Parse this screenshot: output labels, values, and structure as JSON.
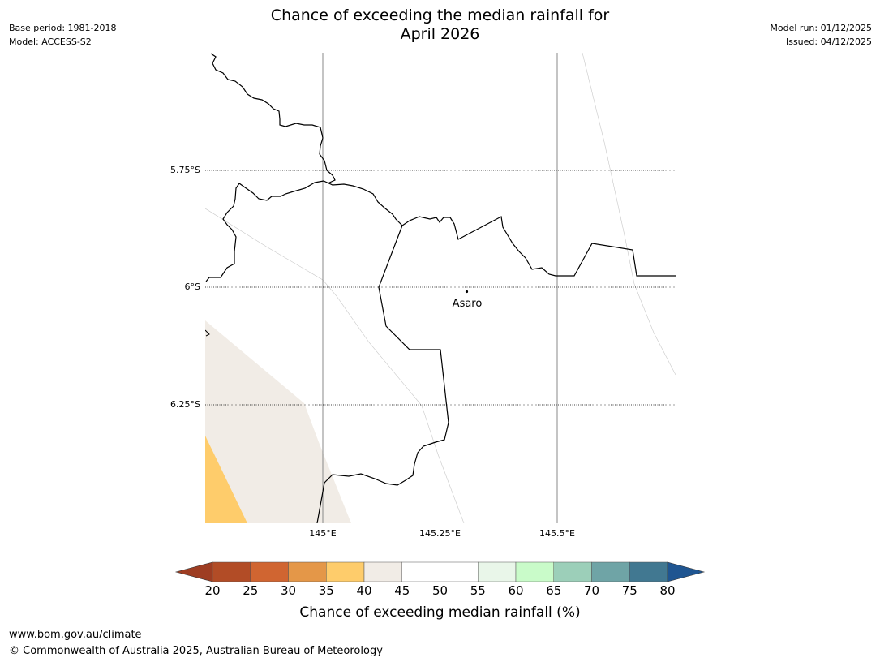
{
  "header": {
    "base_period": "Base period: 1981-2018",
    "model": "Model: ACCESS-S2",
    "title_line1": "Chance of exceeding the median rainfall for",
    "title_line2": "April 2026",
    "model_run": "Model run: 01/12/2025",
    "issued": "Issued: 04/12/2025"
  },
  "map": {
    "lat_labels": [
      "5.75°S",
      "6°S",
      "6.25°S"
    ],
    "lon_labels": [
      "145°E",
      "145.25°E",
      "145.5°E"
    ],
    "place": "Asaro",
    "extent": {
      "lon_min": 144.75,
      "lon_max": 145.75,
      "lat_top": -5.5,
      "lat_bottom": -6.5
    }
  },
  "colorbar": {
    "label": "Chance of exceeding median rainfall (%)",
    "ticks": [
      "20",
      "25",
      "30",
      "35",
      "40",
      "45",
      "50",
      "55",
      "60",
      "65",
      "70",
      "75",
      "80"
    ],
    "low_color": "#9e3d22",
    "high_color": "#1f5591",
    "colors": [
      "#b24c26",
      "#d06531",
      "#e49748",
      "#fecc6b",
      "#f1ece6",
      "#ffffff",
      "#ffffff",
      "#e9f6e9",
      "#c9fbc9",
      "#9ccfb9",
      "#6fa4a6",
      "#417891"
    ]
  },
  "footer": {
    "url": "www.bom.gov.au/climate",
    "copyright": "© Commonwealth of Australia 2025, Australian Bureau of Meteorology"
  }
}
